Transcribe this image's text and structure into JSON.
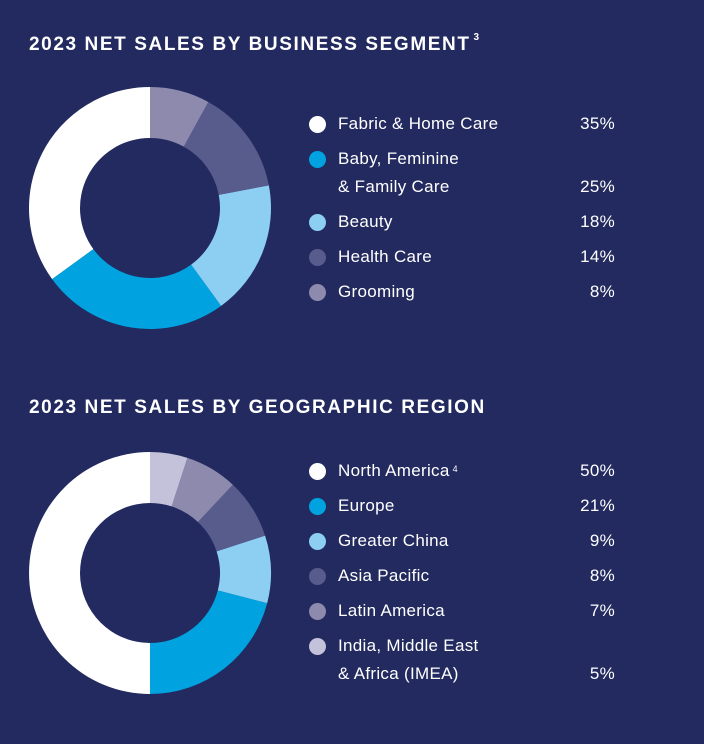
{
  "colors": {
    "background": "#222a5f",
    "white": "#ffffff",
    "blue": "#00a3e0",
    "light_blue": "#8ccff3",
    "slate": "#585c8c",
    "lavender": "#8e8aae",
    "pale_lavender": "#c4c1da"
  },
  "chart_data": [
    {
      "type": "pie",
      "title": "2023 NET SALES BY BUSINESS SEGMENT",
      "title_footnote": "3",
      "categories": [
        "Fabric & Home Care",
        "Baby, Feminine & Family Care",
        "Beauty",
        "Health Care",
        "Grooming"
      ],
      "label_lines": [
        [
          "Fabric & Home Care"
        ],
        [
          "Baby, Feminine",
          "& Family Care"
        ],
        [
          "Beauty"
        ],
        [
          "Health Care"
        ],
        [
          "Grooming"
        ]
      ],
      "label_footnotes": [
        "",
        "",
        "",
        "",
        ""
      ],
      "values": [
        35,
        25,
        18,
        14,
        8
      ],
      "value_labels": [
        "35%",
        "25%",
        "18%",
        "14%",
        "8%"
      ],
      "colors": [
        "#ffffff",
        "#00a3e0",
        "#8ccff3",
        "#585c8c",
        "#8e8aae"
      ],
      "donut": true,
      "legend_position": "right"
    },
    {
      "type": "pie",
      "title": "2023 NET SALES BY GEOGRAPHIC REGION",
      "title_footnote": "",
      "categories": [
        "North America",
        "Europe",
        "Greater China",
        "Asia Pacific",
        "Latin America",
        "India, Middle East & Africa (IMEA)"
      ],
      "label_lines": [
        [
          "North America"
        ],
        [
          "Europe"
        ],
        [
          "Greater China"
        ],
        [
          "Asia Pacific"
        ],
        [
          "Latin America"
        ],
        [
          "India, Middle East",
          "& Africa (IMEA)"
        ]
      ],
      "label_footnotes": [
        "4",
        "",
        "",
        "",
        "",
        ""
      ],
      "values": [
        50,
        21,
        9,
        8,
        7,
        5
      ],
      "value_labels": [
        "50%",
        "21%",
        "9%",
        "8%",
        "7%",
        "5%"
      ],
      "colors": [
        "#ffffff",
        "#00a3e0",
        "#8ccff3",
        "#585c8c",
        "#8e8aae",
        "#c4c1da"
      ],
      "donut": true,
      "legend_position": "right"
    }
  ]
}
